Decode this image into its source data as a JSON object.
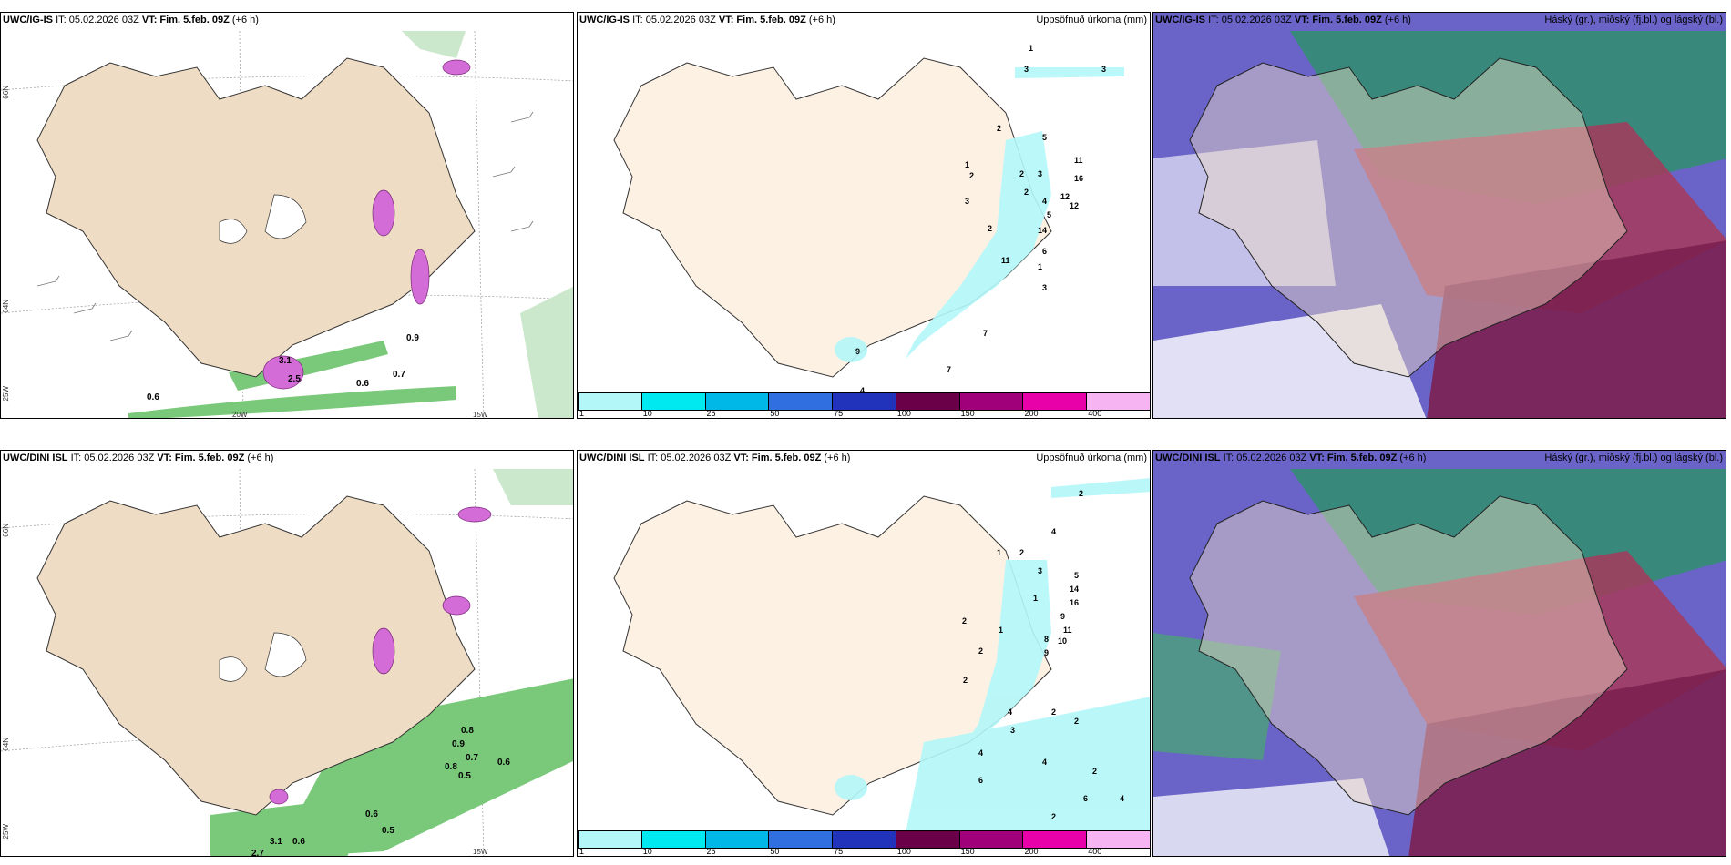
{
  "header_it": "IT: 05.02.2026 03Z",
  "header_vt": "VT: Fim. 5.feb. 09Z",
  "header_lead": "(+6 h)",
  "rows": [
    {
      "model": "UWC/IG-IS"
    },
    {
      "model": "UWC/DINI ISL"
    }
  ],
  "precip_title": "Uppsöfnuð úrkoma (mm)",
  "cloud_title": "Háský (gr.), miðský (fj.bl.) og lágský (bl.)",
  "legend": {
    "labels": [
      "1",
      "10",
      "25",
      "50",
      "75",
      "100",
      "150",
      "200",
      "400"
    ],
    "colors": [
      "#b3f7f9",
      "#00e8f0",
      "#00b8e8",
      "#2f6fe0",
      "#2233bb",
      "#6a0048",
      "#a0007a",
      "#e800a8",
      "#f6b4f2"
    ]
  },
  "coords": {
    "lat_66": "66N",
    "lat_64": "64N",
    "lon_25": "25W",
    "lon_20": "20W",
    "lon_15": "15W"
  },
  "top_wind_values": [
    "0.9",
    "0.6",
    "0.7",
    "0.6",
    "2.5",
    "3.1"
  ],
  "bottom_wind_values": [
    "0.8",
    "0.9",
    "0.7",
    "0.8",
    "0.5",
    "0.6",
    "0.6",
    "0.5",
    "3.1",
    "0.6",
    "2.7"
  ],
  "top_precip_values": [
    "1",
    "3",
    "3",
    "2",
    "5",
    "1",
    "2",
    "2",
    "3",
    "11",
    "16",
    "12",
    "4",
    "12",
    "3",
    "2",
    "5",
    "14",
    "6",
    "2",
    "11",
    "1",
    "3",
    "7",
    "9",
    "7",
    "4"
  ],
  "bottom_precip_values": [
    "2",
    "4",
    "1",
    "2",
    "3",
    "5",
    "1",
    "14",
    "16",
    "9",
    "11",
    "2",
    "1",
    "8",
    "10",
    "2",
    "9",
    "2",
    "4",
    "2",
    "3",
    "2",
    "4",
    "6",
    "4",
    "2",
    "6",
    "2",
    "4"
  ]
}
